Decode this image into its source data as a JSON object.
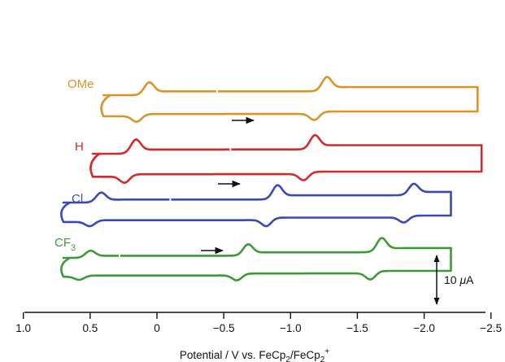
{
  "chart_data": {
    "type": "line",
    "title": "",
    "xlabel": "Potential / V vs. FeCp2/FeCp2+",
    "xlabel_parts": {
      "prefix": "Potential / V vs. FeCp",
      "sub1": "2",
      "middle": "/FeCp",
      "sub2": "2",
      "sup": "+"
    },
    "ylabel": "",
    "xlim": [
      1.0,
      -2.5
    ],
    "x_reversed": true,
    "xticks": [
      1.0,
      0.5,
      0,
      -0.5,
      -1.0,
      -1.5,
      -2.0,
      -2.5
    ],
    "xtick_labels": [
      "1.0",
      "0.5",
      "0",
      "−0.5",
      "−1.0",
      "−1.5",
      "−2.0",
      "−2.5"
    ],
    "y_units": "µA",
    "scale_bar": {
      "value": 10,
      "label_number": "10 ",
      "label_unit_greek": "μ",
      "label_unit": "A"
    },
    "scan_direction": "negative",
    "series": [
      {
        "name": "OMe",
        "color": "#d8952a",
        "start_potential": -0.45,
        "switch_potential": -2.4,
        "end_potential": 0.4,
        "couples": [
          {
            "e_pa": 0.06,
            "e_pc": 0.15,
            "height_uA": 4.5
          },
          {
            "e_pa": -1.27,
            "e_pc": -1.18,
            "height_uA": 5
          }
        ],
        "switch_current_uA": 21
      },
      {
        "name": "H",
        "color": "#d42a2a",
        "start_potential": -0.55,
        "switch_potential": -2.43,
        "end_potential": 0.48,
        "couples": [
          {
            "e_pa": 0.16,
            "e_pc": 0.24,
            "height_uA": 5
          },
          {
            "e_pa": -1.18,
            "e_pc": -1.1,
            "height_uA": 5
          }
        ],
        "switch_current_uA": 15
      },
      {
        "name": "Cl",
        "color": "#3a4ab5",
        "start_potential": -0.1,
        "switch_potential": -2.2,
        "end_potential": 0.7,
        "couples": [
          {
            "e_pa": 0.42,
            "e_pc": 0.5,
            "height_uA": 3.5
          },
          {
            "e_pa": -0.9,
            "e_pc": -0.82,
            "height_uA": 5
          },
          {
            "e_pa": -1.92,
            "e_pc": -1.85,
            "height_uA": 4
          }
        ],
        "switch_current_uA": 6
      },
      {
        "name": "CF3",
        "name_parts": {
          "main": "CF",
          "sub": "3"
        },
        "color": "#3e9a36",
        "start_potential": 0.28,
        "switch_potential": -2.2,
        "end_potential": 0.7,
        "couples": [
          {
            "e_pa": 0.5,
            "e_pc": 0.58,
            "height_uA": 2.5
          },
          {
            "e_pa": -0.68,
            "e_pc": -0.6,
            "height_uA": 4
          },
          {
            "e_pa": -1.68,
            "e_pc": -1.6,
            "height_uA": 5
          }
        ],
        "switch_current_uA": 13
      }
    ],
    "grid": false,
    "legend": "none"
  }
}
